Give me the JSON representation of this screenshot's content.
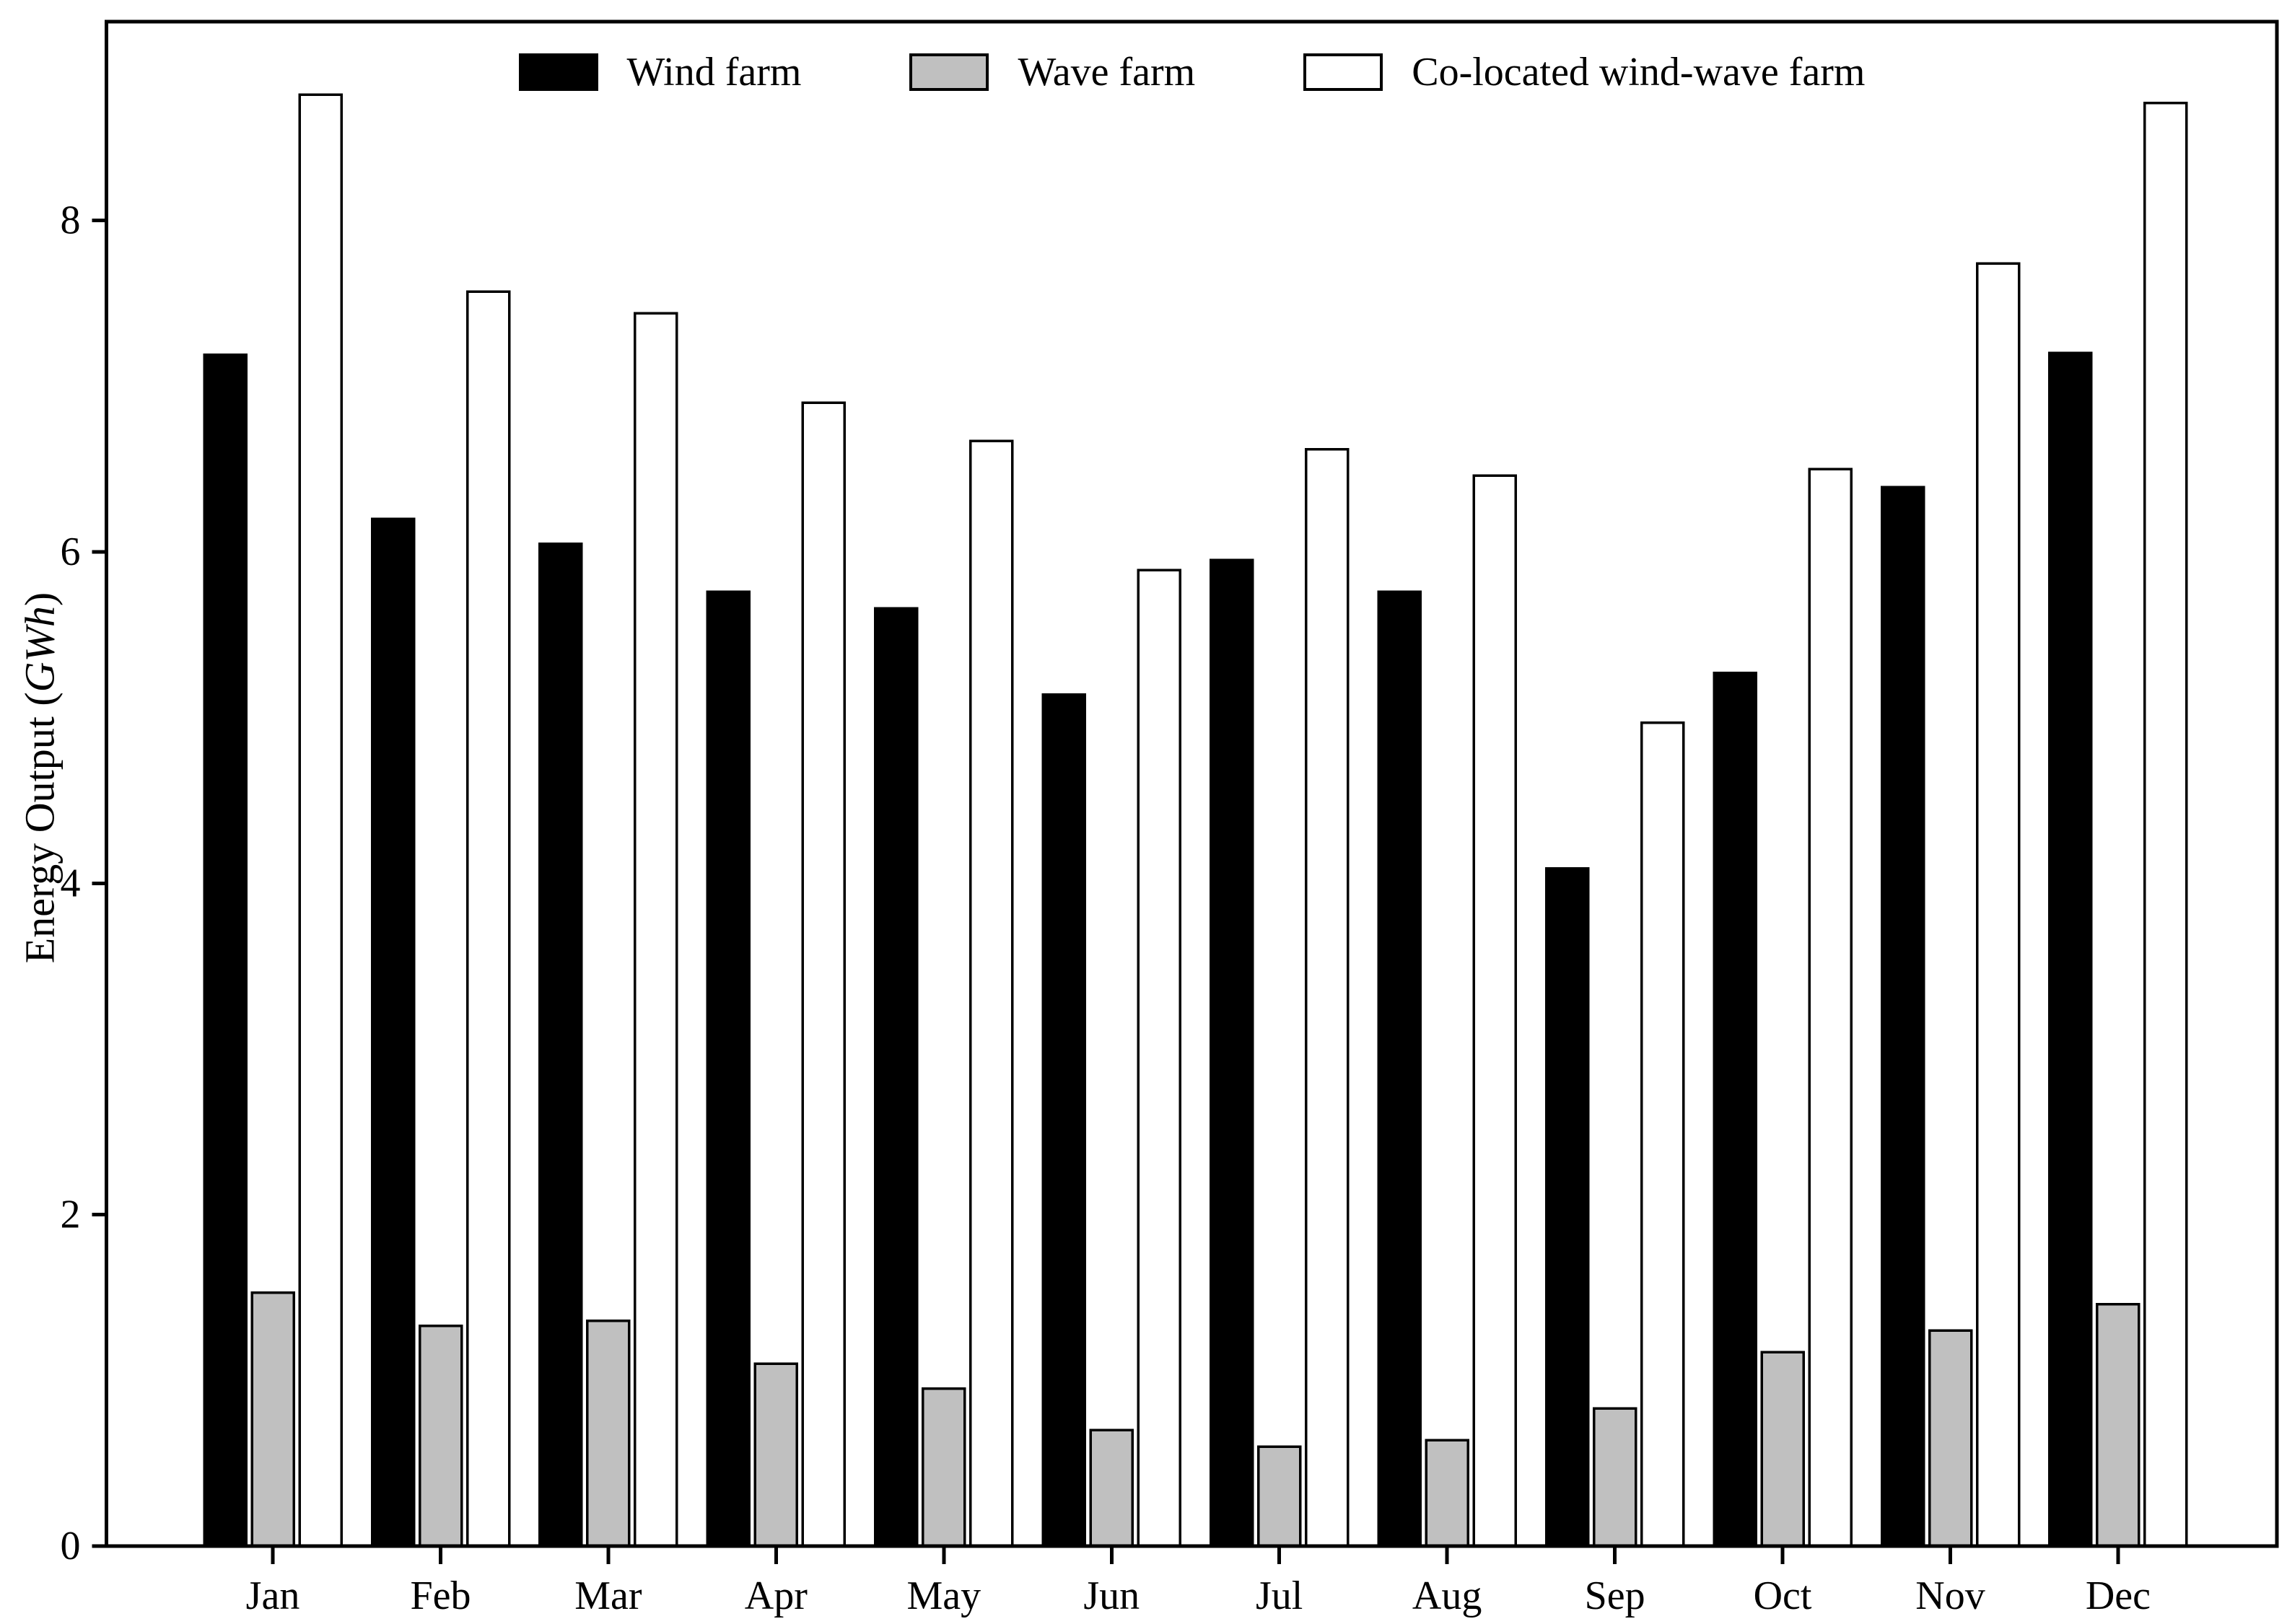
{
  "figure": {
    "ylabel_prefix": "Energy Output (",
    "ylabel_italic": "GWh",
    "ylabel_suffix": ")"
  },
  "chart_data": {
    "type": "bar",
    "title": "",
    "xlabel": "",
    "ylabel": "Energy Output (GWh)",
    "categories": [
      "Jan",
      "Feb",
      "Mar",
      "Apr",
      "May",
      "Jun",
      "Jul",
      "Aug",
      "Sep",
      "Oct",
      "Nov",
      "Dec"
    ],
    "series": [
      {
        "name": "Wind farm",
        "color": "#000000",
        "edge_color": "#000000",
        "values": [
          7.19,
          6.2,
          6.05,
          5.76,
          5.66,
          5.14,
          5.95,
          5.76,
          4.09,
          5.27,
          6.39,
          7.2
        ]
      },
      {
        "name": "Wave farm",
        "color": "#c0c0c0",
        "edge_color": "#000000",
        "values": [
          1.53,
          1.33,
          1.36,
          1.1,
          0.95,
          0.7,
          0.6,
          0.64,
          0.83,
          1.17,
          1.3,
          1.46
        ]
      },
      {
        "name": "Co-located wind-wave farm",
        "color": "#ffffff",
        "edge_color": "#000000",
        "values": [
          8.76,
          7.57,
          7.44,
          6.9,
          6.67,
          5.89,
          6.62,
          6.46,
          4.97,
          6.5,
          7.74,
          8.71
        ]
      }
    ],
    "yticks": [
      0,
      2,
      4,
      6,
      8
    ],
    "ylim": [
      0,
      9.2
    ],
    "grid": false,
    "legend_position": "upper center inside",
    "axis_color": "#000000",
    "background_color": "#ffffff"
  }
}
